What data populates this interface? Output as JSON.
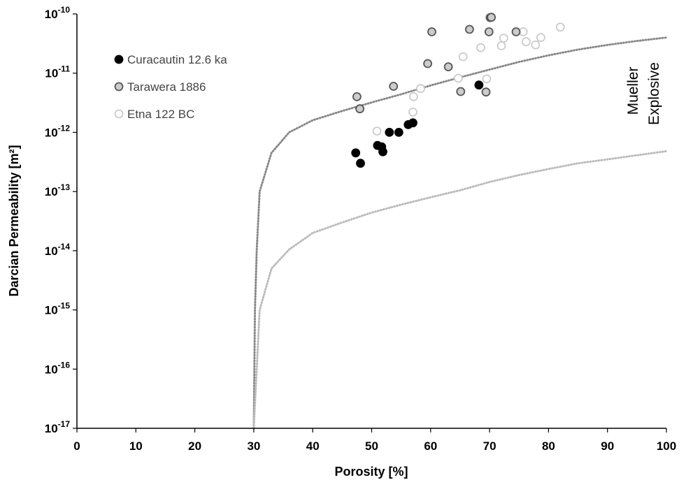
{
  "chart_data": {
    "type": "scatter",
    "xlabel": "Porosity [%]",
    "ylabel": "Darcian Permeability [m²]",
    "xlim": [
      0,
      100
    ],
    "ylim_log10": [
      -17,
      -10
    ],
    "y_scale": "log",
    "grid": false,
    "legend_position": "top-left",
    "x_ticks": [
      0,
      10,
      20,
      30,
      40,
      50,
      60,
      70,
      80,
      90,
      100
    ],
    "y_tick_exponents": [
      -17,
      -16,
      -15,
      -14,
      -13,
      -12,
      -11,
      -10
    ],
    "y_tick_base": "10",
    "series": [
      {
        "name": "Curacautin 12.6 ka",
        "fill": "#000000",
        "stroke": "#000000",
        "points": [
          [
            47.3,
            4.5e-13
          ],
          [
            48.1,
            3e-13
          ],
          [
            51.0,
            6e-13
          ],
          [
            51.7,
            5.7e-13
          ],
          [
            51.9,
            4.7e-13
          ],
          [
            53.0,
            1e-12
          ],
          [
            54.6,
            1e-12
          ],
          [
            56.2,
            1.35e-12
          ],
          [
            57.0,
            1.45e-12
          ],
          [
            68.2,
            6.3e-12
          ]
        ]
      },
      {
        "name": "Tarawera 1886",
        "fill": "#cccccc",
        "stroke": "#555555",
        "points": [
          [
            47.5,
            4e-12
          ],
          [
            48.0,
            2.5e-12
          ],
          [
            53.7,
            6e-12
          ],
          [
            59.5,
            1.45e-11
          ],
          [
            60.2,
            5e-11
          ],
          [
            63.0,
            1.28e-11
          ],
          [
            65.1,
            4.9e-12
          ],
          [
            66.6,
            5.5e-11
          ],
          [
            69.4,
            4.8e-12
          ],
          [
            69.9,
            5e-11
          ],
          [
            70.1,
            8.7e-11
          ],
          [
            70.3,
            8.8e-11
          ],
          [
            74.5,
            5e-11
          ]
        ]
      },
      {
        "name": "Etna 122 BC",
        "fill": "#ffffff",
        "stroke": "#cccccc",
        "points": [
          [
            50.9,
            1.05e-12
          ],
          [
            57.0,
            2.2e-12
          ],
          [
            57.1,
            4e-12
          ],
          [
            58.3,
            5.5e-12
          ],
          [
            64.7,
            8.2e-12
          ],
          [
            65.5,
            1.9e-11
          ],
          [
            68.5,
            2.7e-11
          ],
          [
            69.5,
            8e-12
          ],
          [
            72.0,
            2.9e-11
          ],
          [
            72.4,
            3.9e-11
          ],
          [
            75.7,
            5e-11
          ],
          [
            76.2,
            3.4e-11
          ],
          [
            77.8,
            3e-11
          ],
          [
            78.7,
            4e-11
          ],
          [
            82.0,
            6e-11
          ]
        ]
      }
    ],
    "threshold_curves": [
      {
        "label": "Explosive",
        "stroke": "#888888",
        "points": [
          [
            30.0,
            1e-17
          ],
          [
            30.2,
            1e-15
          ],
          [
            30.5,
            1e-14
          ],
          [
            31.0,
            1e-13
          ],
          [
            33.0,
            4.5e-13
          ],
          [
            36.0,
            1e-12
          ],
          [
            40.0,
            1.6e-12
          ],
          [
            45.0,
            2.3e-12
          ],
          [
            50.0,
            3.2e-12
          ],
          [
            55.0,
            4.4e-12
          ],
          [
            60.0,
            6.2e-12
          ],
          [
            65.0,
            8.5e-12
          ],
          [
            70.0,
            1.15e-11
          ],
          [
            75.0,
            1.55e-11
          ],
          [
            80.0,
            2e-11
          ],
          [
            85.0,
            2.5e-11
          ],
          [
            90.0,
            3e-11
          ],
          [
            95.0,
            3.5e-11
          ],
          [
            100.0,
            4e-11
          ]
        ]
      },
      {
        "label": "Mueller",
        "stroke": "#bbbbbb",
        "points": [
          [
            30.0,
            1e-17
          ],
          [
            30.5,
            1e-16
          ],
          [
            31.0,
            1e-15
          ],
          [
            33.0,
            5e-15
          ],
          [
            36.0,
            1.05e-14
          ],
          [
            40.0,
            2e-14
          ],
          [
            45.0,
            3e-14
          ],
          [
            50.0,
            4.4e-14
          ],
          [
            55.0,
            6e-14
          ],
          [
            60.0,
            8e-14
          ],
          [
            65.0,
            1.05e-13
          ],
          [
            70.0,
            1.45e-13
          ],
          [
            75.0,
            1.9e-13
          ],
          [
            80.0,
            2.4e-13
          ],
          [
            85.0,
            3e-13
          ],
          [
            90.0,
            3.5e-13
          ],
          [
            95.0,
            4.1e-13
          ],
          [
            100.0,
            4.8e-13
          ]
        ]
      }
    ]
  },
  "annotations": {
    "mueller": "Mueller",
    "explosive": "Explosive"
  }
}
